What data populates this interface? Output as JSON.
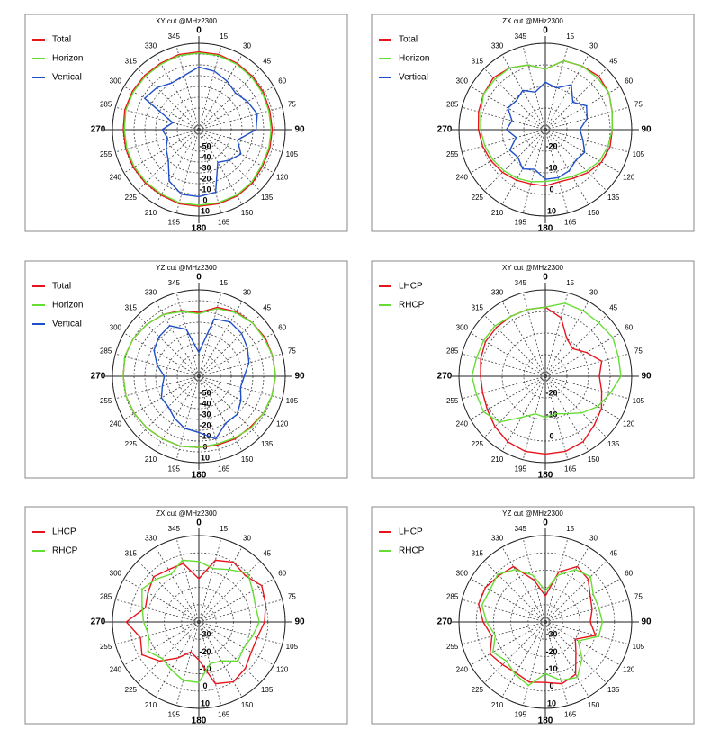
{
  "chart_data": [
    {
      "type": "polar",
      "title": "XY cut @MHz2300",
      "theta": [
        0,
        15,
        30,
        45,
        60,
        75,
        90,
        105,
        120,
        135,
        150,
        165,
        180,
        195,
        210,
        225,
        240,
        255,
        270,
        285,
        300,
        315,
        330,
        345
      ],
      "rlim": [
        -70,
        10
      ],
      "rticks": [
        -50,
        -40,
        -30,
        -20,
        -10,
        0,
        10
      ],
      "series": [
        {
          "name": "Total",
          "color": "#e8141c",
          "values": [
            2,
            2,
            1,
            0,
            -1,
            -2,
            -2,
            -2,
            -2,
            0,
            1,
            1,
            1,
            1,
            0,
            0,
            0,
            0,
            0,
            1,
            1,
            1,
            1,
            2
          ]
        },
        {
          "name": "Horizon",
          "color": "#66dd33",
          "values": [
            1,
            1,
            0,
            -1,
            -2,
            -3,
            -3,
            -3,
            -3,
            -1,
            0,
            0,
            0,
            0,
            -1,
            -1,
            -1,
            -1,
            -1,
            0,
            0,
            0,
            0,
            1
          ]
        },
        {
          "name": "Vertical",
          "color": "#1f4fc8",
          "values": [
            -12,
            -14,
            -18,
            -22,
            -18,
            -14,
            -17,
            -33,
            -25,
            -30,
            -35,
            -10,
            -8,
            -8,
            -15,
            -30,
            -35,
            -40,
            -36,
            -45,
            -12,
            -15,
            -20,
            -18
          ]
        }
      ]
    },
    {
      "type": "polar",
      "title": "ZX cut @MHz2300",
      "theta": [
        0,
        15,
        30,
        45,
        60,
        75,
        90,
        105,
        120,
        135,
        150,
        165,
        180,
        195,
        210,
        225,
        240,
        255,
        270,
        285,
        300,
        315,
        330,
        345
      ],
      "rlim": [
        -30,
        10
      ],
      "rticks": [
        -20,
        -10,
        0,
        10
      ],
      "series": [
        {
          "name": "Total",
          "color": "#e8141c",
          "values": [
            -2,
            3,
            4,
            5,
            4,
            2,
            1,
            1,
            0,
            -2,
            -4,
            -5,
            -4,
            -4,
            -3,
            -2,
            -1,
            0,
            1,
            2,
            3,
            4,
            3,
            1
          ]
        },
        {
          "name": "Horizon",
          "color": "#66dd33",
          "values": [
            -2,
            3,
            4,
            4,
            4,
            2,
            1,
            0,
            -1,
            -3,
            -5,
            -6,
            -6,
            -5,
            -4,
            -3,
            -2,
            -1,
            0,
            1,
            3,
            3,
            3,
            1
          ]
        },
        {
          "name": "Vertical",
          "color": "#1f4fc8",
          "values": [
            -8,
            -10,
            -6,
            -12,
            -8,
            -10,
            -14,
            -12,
            -9,
            -10,
            -8,
            -7,
            -7,
            -11,
            -9,
            -12,
            -11,
            -16,
            -12,
            -14,
            -10,
            -11,
            -9,
            -12
          ]
        }
      ]
    },
    {
      "type": "polar",
      "title": "YZ cut @MHz2300",
      "theta": [
        0,
        15,
        30,
        45,
        60,
        75,
        90,
        105,
        120,
        135,
        150,
        165,
        180,
        195,
        210,
        225,
        240,
        255,
        270,
        285,
        300,
        315,
        330,
        345
      ],
      "rlim": [
        -70,
        10
      ],
      "rticks": [
        -50,
        -40,
        -30,
        -20,
        -10,
        0,
        10
      ],
      "series": [
        {
          "name": "Total",
          "color": "#e8141c",
          "values": [
            -11,
            -4,
            -1,
            0,
            1,
            1,
            1,
            0,
            -1,
            -3,
            -3,
            -4,
            -4,
            -3,
            -3,
            -2,
            -1,
            0,
            0,
            1,
            0,
            -2,
            -4,
            -7
          ]
        },
        {
          "name": "Horizon",
          "color": "#66dd33",
          "values": [
            -12,
            -5,
            -2,
            0,
            0,
            1,
            1,
            0,
            -1,
            -2,
            -4,
            -5,
            -4,
            -3,
            -3,
            -2,
            -1,
            0,
            0,
            1,
            0,
            -2,
            -4,
            -8
          ]
        },
        {
          "name": "Vertical",
          "color": "#1f4fc8",
          "values": [
            -48,
            -15,
            -12,
            -14,
            -18,
            -22,
            -28,
            -30,
            -25,
            -20,
            -20,
            -10,
            -18,
            -20,
            -25,
            -30,
            -30,
            -35,
            -38,
            -30,
            -22,
            -18,
            -16,
            -25
          ]
        }
      ]
    },
    {
      "type": "polar",
      "title": "XY cut @MHz2300",
      "theta": [
        0,
        15,
        30,
        45,
        60,
        75,
        90,
        105,
        120,
        135,
        150,
        165,
        180,
        195,
        210,
        225,
        240,
        255,
        270,
        285,
        300,
        315,
        330,
        345
      ],
      "rlim": [
        -30,
        10
      ],
      "rticks": [
        -20,
        -10,
        0
      ],
      "series": [
        {
          "name": "LHCP",
          "color": "#e8141c",
          "values": [
            2,
            -2,
            -10,
            -12,
            -8,
            -3,
            -5,
            -3,
            0,
            2,
            5,
            6,
            6,
            6,
            5,
            3,
            1,
            0,
            0,
            1,
            2,
            2,
            2,
            2
          ]
        },
        {
          "name": "RHCP",
          "color": "#66dd33",
          "values": [
            2,
            5,
            5,
            5,
            6,
            5,
            5,
            1,
            -2,
            -6,
            -10,
            -12,
            -11,
            -12,
            -8,
            0,
            3,
            3,
            4,
            3,
            3,
            3,
            2,
            2
          ]
        }
      ]
    },
    {
      "type": "polar",
      "title": "ZX cut @MHz2300",
      "theta": [
        0,
        15,
        30,
        45,
        60,
        75,
        90,
        105,
        120,
        135,
        150,
        165,
        180,
        195,
        210,
        225,
        240,
        255,
        270,
        285,
        300,
        315,
        330,
        345
      ],
      "rlim": [
        -40,
        10
      ],
      "rticks": [
        -30,
        -20,
        -10,
        0,
        10
      ],
      "series": [
        {
          "name": "LHCP",
          "color": "#e8141c",
          "values": [
            -15,
            -3,
            0,
            -2,
            2,
            0,
            -2,
            -5,
            -5,
            -2,
            0,
            -3,
            -18,
            -22,
            -16,
            -8,
            -2,
            -5,
            2,
            -8,
            -6,
            -3,
            -5,
            -5
          ]
        },
        {
          "name": "RHCP",
          "color": "#66dd33",
          "values": [
            -5,
            -8,
            -5,
            0,
            -4,
            -6,
            -5,
            -8,
            -10,
            -8,
            -14,
            -15,
            -5,
            -5,
            -8,
            -10,
            -6,
            -10,
            -8,
            -6,
            -2,
            -5,
            -8,
            -3
          ]
        }
      ]
    },
    {
      "type": "polar",
      "title": "YZ cut @MHz2300",
      "theta": [
        0,
        15,
        30,
        45,
        60,
        75,
        90,
        105,
        120,
        135,
        150,
        165,
        180,
        195,
        210,
        225,
        240,
        255,
        270,
        285,
        300,
        315,
        330,
        345
      ],
      "rlim": [
        -40,
        10
      ],
      "rticks": [
        -30,
        -20,
        -10,
        0,
        10
      ],
      "series": [
        {
          "name": "LHCP",
          "color": "#e8141c",
          "values": [
            -25,
            -10,
            -3,
            -5,
            -10,
            -12,
            -14,
            -10,
            -20,
            -15,
            -5,
            -3,
            -5,
            -4,
            -6,
            -5,
            -3,
            -8,
            -4,
            0,
            0,
            -2,
            -3,
            -15
          ]
        },
        {
          "name": "RHCP",
          "color": "#66dd33",
          "values": [
            -22,
            -12,
            -5,
            -3,
            -8,
            -8,
            -7,
            -8,
            -18,
            -10,
            -3,
            -5,
            -10,
            -2,
            -5,
            -8,
            -5,
            -10,
            -6,
            -2,
            -3,
            -1,
            -5,
            -12
          ]
        }
      ]
    }
  ]
}
